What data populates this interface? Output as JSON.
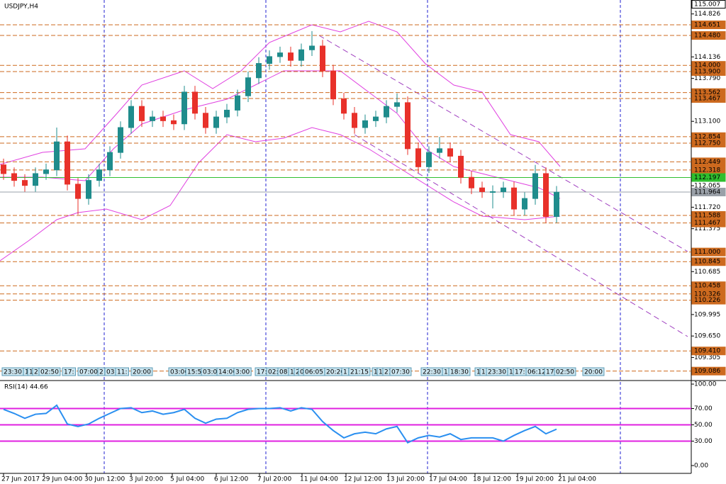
{
  "chart_data": {
    "type": "candlestick",
    "title": "USDJPY,H4",
    "ylim": [
      108.94,
      115.05
    ],
    "yticks": [
      114.826,
      114.136,
      {
        "value": 113.79,
        "label": "113.790"
      },
      {
        "value": 113.1,
        "label": "113.100"
      },
      112.065,
      {
        "value": 111.72,
        "label": "111.720"
      },
      111.375,
      110.685,
      109.995,
      {
        "value": 109.65,
        "label": "109.650"
      },
      109.305
    ],
    "top_price": 115.007,
    "levels": [
      114.651,
      {
        "value": 114.48,
        "label": "114.480"
      },
      {
        "value": 114.0,
        "label": "114.000"
      },
      {
        "value": 113.9,
        "label": "113.900"
      },
      113.562,
      113.467,
      112.854,
      {
        "value": 112.75,
        "label": "112.750"
      },
      112.449,
      112.318,
      111.588,
      111.467,
      {
        "value": 111.0,
        "label": "111.000"
      },
      110.845,
      110.458,
      110.326,
      110.226,
      {
        "value": 109.41,
        "label": "109.410"
      },
      109.086
    ],
    "support_level": 112.197,
    "current_price": 111.964,
    "up_color": "#1f8c8c",
    "down_color": "#e8312a",
    "level_color": "#cd6a1f",
    "open": [
      112.4,
      112.26,
      112.15,
      112.07,
      112.26,
      112.32,
      112.77,
      112.09,
      111.86,
      112.15,
      112.32,
      112.6,
      113.0,
      113.34,
      113.11,
      113.17,
      113.11,
      113.06,
      113.57,
      113.23,
      113.0,
      113.17,
      113.28,
      113.51,
      113.8,
      114.03,
      114.14,
      114.2,
      114.08,
      114.25,
      114.31,
      113.91,
      113.46,
      113.23,
      113.0,
      113.11,
      113.17,
      113.34,
      113.4,
      112.66,
      112.37,
      112.6,
      112.66,
      112.54,
      112.2,
      112.03,
      111.97,
      111.97,
      112.03,
      111.69,
      111.86,
      112.26,
      111.57
    ],
    "high": [
      112.5,
      112.36,
      112.25,
      112.36,
      112.42,
      113.0,
      112.87,
      112.19,
      112.25,
      112.42,
      112.7,
      113.1,
      113.44,
      113.44,
      113.27,
      113.27,
      113.21,
      113.67,
      113.67,
      113.33,
      113.27,
      113.38,
      113.61,
      113.9,
      114.13,
      114.24,
      114.3,
      114.3,
      114.35,
      114.55,
      114.41,
      114.01,
      113.56,
      113.33,
      113.21,
      113.27,
      113.44,
      113.55,
      113.5,
      112.76,
      112.7,
      112.85,
      112.76,
      112.64,
      112.3,
      112.13,
      112.07,
      112.13,
      112.13,
      111.96,
      112.4,
      112.36,
      112.06
    ],
    "low": [
      112.16,
      112.05,
      111.97,
      111.97,
      112.16,
      112.22,
      111.99,
      111.6,
      111.76,
      112.05,
      112.22,
      112.5,
      112.9,
      113.01,
      113.01,
      113.01,
      112.96,
      112.96,
      113.13,
      112.9,
      112.9,
      113.07,
      113.18,
      113.41,
      113.7,
      113.93,
      114.04,
      113.98,
      113.98,
      114.15,
      113.81,
      113.36,
      113.13,
      112.9,
      112.9,
      113.01,
      113.07,
      113.24,
      112.56,
      112.27,
      112.27,
      112.5,
      112.44,
      112.1,
      111.93,
      111.87,
      111.7,
      111.87,
      111.59,
      111.59,
      111.76,
      111.47,
      111.47
    ],
    "close": [
      112.26,
      112.15,
      112.07,
      112.26,
      112.32,
      112.77,
      112.09,
      111.86,
      112.15,
      112.32,
      112.6,
      113.0,
      113.34,
      113.11,
      113.17,
      113.11,
      113.06,
      113.57,
      113.23,
      113.0,
      113.17,
      113.28,
      113.51,
      113.8,
      114.03,
      114.14,
      114.2,
      114.08,
      114.25,
      114.31,
      113.91,
      113.46,
      113.23,
      113.0,
      113.11,
      113.17,
      113.34,
      113.4,
      112.66,
      112.37,
      112.6,
      112.66,
      112.54,
      112.2,
      112.03,
      111.97,
      111.97,
      112.03,
      111.69,
      111.86,
      112.26,
      111.57,
      111.96
    ],
    "dates": [
      "27 Jun 2017",
      "29 Jun 04:00",
      "30 Jun 12:00",
      "3 Jul 20:00",
      "5 Jul 04:00",
      "6 Jul 12:00",
      "7 Jul 20:00",
      "11 Jul 04:00",
      "12 Jul 12:00",
      "13 Jul 20:00",
      "17 Jul 04:00",
      "18 Jul 12:00",
      "19 Jul 20:00",
      "21 Jul 04:00"
    ],
    "time_tags": [
      "23:30",
      "1",
      "1",
      "2",
      "02:50",
      "17:",
      "07:00",
      "2",
      "03:",
      "11:",
      "20:00",
      "03:00",
      "15:55",
      "03:00",
      "14:00",
      "3:00",
      "17:",
      "02:",
      "08:",
      "1",
      "2",
      "0",
      "06:05",
      "20:20",
      "1",
      "21:15",
      "1",
      "1",
      "21:",
      "07:30",
      "22:30",
      "1",
      "18:30",
      "1",
      "1",
      "23:30",
      "1",
      "17:",
      "06:12",
      "17:",
      "02:50",
      "20:00"
    ],
    "rsi": {
      "title": "RSI(14) 44.66",
      "ylim": [
        -9.6,
        103.5
      ],
      "yticks": [
        {
          "value": 100,
          "label": "100.00"
        },
        {
          "value": 70,
          "label": "70.00"
        },
        {
          "value": 50,
          "label": "50.00"
        },
        {
          "value": 30,
          "label": "30.00"
        },
        {
          "value": 0,
          "label": "0.00"
        }
      ],
      "levels": [
        70,
        50,
        30
      ],
      "color": "#2a8ff0",
      "values": [
        69,
        64,
        58,
        63,
        64,
        74,
        51,
        48,
        51,
        58,
        64,
        70,
        71,
        65,
        67,
        63,
        65,
        69,
        58,
        52,
        57,
        58,
        65,
        69,
        70,
        70,
        71,
        67,
        71,
        69,
        54,
        43,
        34,
        39,
        41,
        39,
        45,
        48,
        28,
        34,
        37,
        35,
        39,
        32,
        34,
        34,
        34,
        30,
        37,
        43,
        48,
        39,
        44.66
      ]
    }
  }
}
